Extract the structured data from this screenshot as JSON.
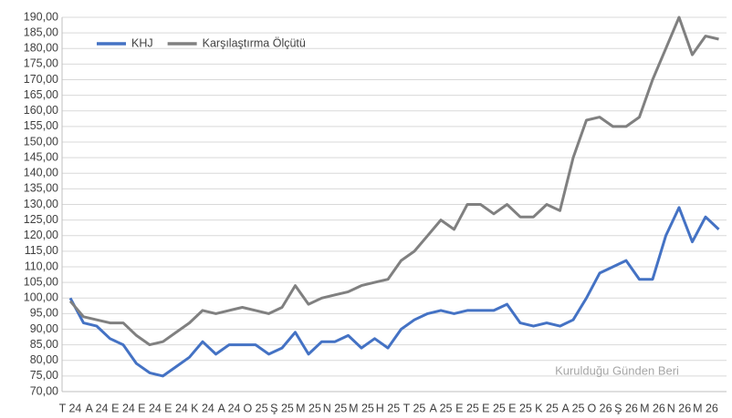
{
  "chart_data": {
    "type": "line",
    "categories": [
      "T 24",
      null,
      "A 24",
      null,
      "E 24",
      null,
      "E 24",
      null,
      "E 24",
      null,
      "K 24",
      null,
      "A 24",
      null,
      "O 25",
      null,
      "Ş 25",
      null,
      "M 25",
      null,
      "N 25",
      null,
      "M 25",
      null,
      "H 25",
      null,
      "T 25",
      null,
      "A 25",
      null,
      "E 25",
      null,
      "E 25",
      null,
      "E 25",
      null,
      "K 25",
      null,
      "A 25",
      null,
      "O 26",
      null,
      "Ş 26",
      null,
      "M 26",
      null,
      "N 26",
      null,
      "M 26",
      null
    ],
    "series": [
      {
        "name": "KHJ",
        "color": "#4472c4",
        "values": [
          100,
          92,
          91,
          87,
          85,
          79,
          76,
          75,
          78,
          81,
          86,
          82,
          85,
          85,
          85,
          82,
          84,
          89,
          82,
          86,
          86,
          88,
          84,
          87,
          84,
          90,
          93,
          95,
          96,
          95,
          96,
          96,
          96,
          98,
          92,
          91,
          92,
          91,
          93,
          100,
          108,
          110,
          112,
          106,
          106,
          120,
          129,
          118,
          126,
          122
        ]
      },
      {
        "name": "Karşılaştırma Ölçütü",
        "color": "#808080",
        "values": [
          99,
          94,
          93,
          92,
          92,
          88,
          85,
          86,
          89,
          92,
          96,
          95,
          96,
          97,
          96,
          95,
          97,
          104,
          98,
          100,
          101,
          102,
          104,
          105,
          106,
          112,
          115,
          120,
          125,
          122,
          130,
          130,
          127,
          130,
          126,
          126,
          130,
          128,
          145,
          157,
          158,
          155,
          155,
          158,
          170,
          180,
          190,
          178,
          184,
          183
        ]
      }
    ],
    "ylim": [
      70,
      190
    ],
    "yticks": [
      {
        "value": 70,
        "label": "70,00"
      },
      {
        "value": 75,
        "label": "75,00"
      },
      {
        "value": 80,
        "label": "80,00"
      },
      {
        "value": 85,
        "label": "85,00"
      },
      {
        "value": 90,
        "label": "90,00"
      },
      {
        "value": 95,
        "label": "95,00"
      },
      {
        "value": 100,
        "label": "100,00"
      },
      {
        "value": 105,
        "label": "105,00"
      },
      {
        "value": 110,
        "label": "110,00"
      },
      {
        "value": 115,
        "label": "115,00"
      },
      {
        "value": 120,
        "label": "120,00"
      },
      {
        "value": 125,
        "label": "125,00"
      },
      {
        "value": 130,
        "label": "130,00"
      },
      {
        "value": 135,
        "label": "135,00"
      },
      {
        "value": 140,
        "label": "140,00"
      },
      {
        "value": 145,
        "label": "145,00"
      },
      {
        "value": 150,
        "label": "150,00"
      },
      {
        "value": 155,
        "label": "155,00"
      },
      {
        "value": 160,
        "label": "160,00"
      },
      {
        "value": 165,
        "label": "165,00"
      },
      {
        "value": 170,
        "label": "170,00"
      },
      {
        "value": 175,
        "label": "175,00"
      },
      {
        "value": 180,
        "label": "180,00"
      },
      {
        "value": 185,
        "label": "185,00"
      },
      {
        "value": 190,
        "label": "190,00"
      }
    ],
    "grid": true,
    "legend": "upper left",
    "annotation": "Kurulduğu Günden Beri"
  }
}
